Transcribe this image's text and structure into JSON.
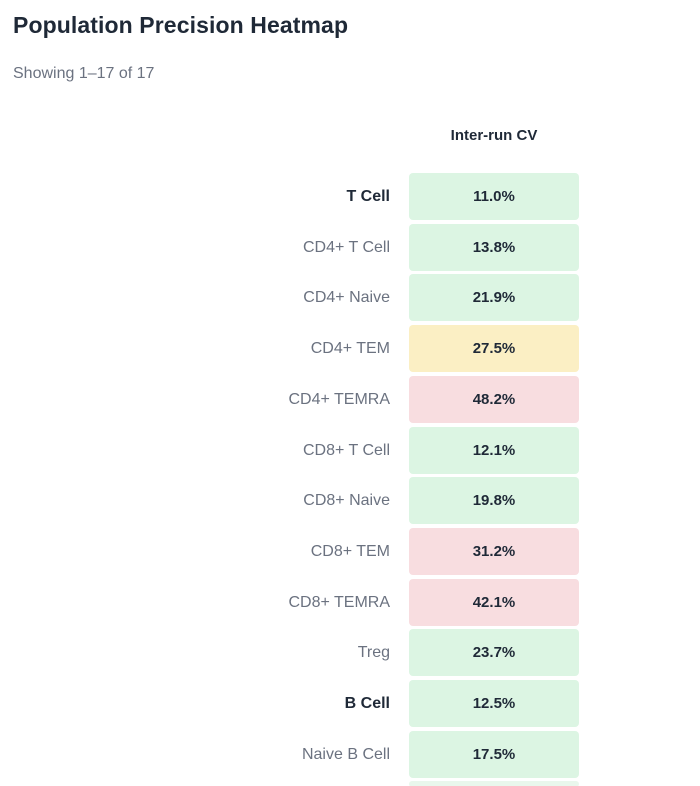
{
  "header": {
    "title": "Population Precision Heatmap",
    "subtitle": "Showing 1–17 of 17"
  },
  "colors": {
    "good": "#dcf5e3",
    "warn": "#fbefc4",
    "bad": "#f8dde0",
    "partial_row_fill": "#e9f7ec"
  },
  "chart_data": {
    "type": "heatmap",
    "columns": [
      "Inter-run CV"
    ],
    "value_unit": "%",
    "rows": [
      {
        "label": "T Cell",
        "value": 11.0,
        "display": "11.0%",
        "level": "good",
        "parent": true
      },
      {
        "label": "CD4+ T Cell",
        "value": 13.8,
        "display": "13.8%",
        "level": "good",
        "parent": false
      },
      {
        "label": "CD4+ Naive",
        "value": 21.9,
        "display": "21.9%",
        "level": "good",
        "parent": false
      },
      {
        "label": "CD4+ TEM",
        "value": 27.5,
        "display": "27.5%",
        "level": "warn",
        "parent": false
      },
      {
        "label": "CD4+ TEMRA",
        "value": 48.2,
        "display": "48.2%",
        "level": "bad",
        "parent": false
      },
      {
        "label": "CD8+ T Cell",
        "value": 12.1,
        "display": "12.1%",
        "level": "good",
        "parent": false
      },
      {
        "label": "CD8+ Naive",
        "value": 19.8,
        "display": "19.8%",
        "level": "good",
        "parent": false
      },
      {
        "label": "CD8+ TEM",
        "value": 31.2,
        "display": "31.2%",
        "level": "bad",
        "parent": false
      },
      {
        "label": "CD8+ TEMRA",
        "value": 42.1,
        "display": "42.1%",
        "level": "bad",
        "parent": false
      },
      {
        "label": "Treg",
        "value": 23.7,
        "display": "23.7%",
        "level": "good",
        "parent": false
      },
      {
        "label": "B Cell",
        "value": 12.5,
        "display": "12.5%",
        "level": "good",
        "parent": true
      },
      {
        "label": "Naive B Cell",
        "value": 17.5,
        "display": "17.5%",
        "level": "good",
        "parent": false
      }
    ],
    "partially_visible_rows": 1
  }
}
